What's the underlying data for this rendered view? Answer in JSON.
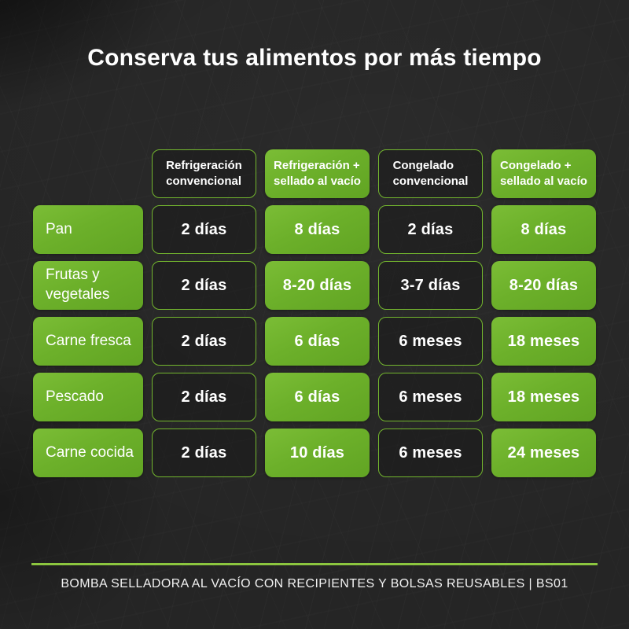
{
  "title": "Conserva tus alimentos por más tiempo",
  "colors": {
    "background": "#252525",
    "accent_green": "#6cb02a",
    "dark_cell_border": "#73b62e",
    "footer_line_green": "#8cc63f",
    "text": "#ffffff"
  },
  "table": {
    "col_headers": [
      {
        "line1": "Refrigeración",
        "line2": "convencional"
      },
      {
        "line1": "Refrigeración +",
        "line2": "sellado al vacío"
      },
      {
        "line1": "Congelado",
        "line2": "convencional"
      },
      {
        "line1": "Congelado +",
        "line2": "sellado al vacío"
      }
    ],
    "rows": [
      {
        "label": "Pan",
        "values": [
          "2 días",
          "8 días",
          "2 días",
          "8 días"
        ]
      },
      {
        "label": "Frutas y vegetales",
        "values": [
          "2 días",
          "8-20 días",
          "3-7 días",
          "8-20 días"
        ]
      },
      {
        "label": "Carne fresca",
        "values": [
          "2 días",
          "6 días",
          "6 meses",
          "18 meses"
        ]
      },
      {
        "label": "Pescado",
        "values": [
          "2 días",
          "6 días",
          "6 meses",
          "18 meses"
        ]
      },
      {
        "label": "Carne cocida",
        "values": [
          "2 días",
          "10 días",
          "6 meses",
          "24 meses"
        ]
      }
    ]
  },
  "footer": {
    "caption": "BOMBA SELLADORA AL VACÍO CON RECIPIENTES Y BOLSAS REUSABLES | BS01"
  },
  "chart_data": {
    "type": "table",
    "title": "Conserva tus alimentos por más tiempo",
    "columns": [
      "Refrigeración convencional",
      "Refrigeración + sellado al vacío",
      "Congelado convencional",
      "Congelado + sellado al vacío"
    ],
    "row_labels": [
      "Pan",
      "Frutas y vegetales",
      "Carne fresca",
      "Pescado",
      "Carne cocida"
    ],
    "cells": [
      [
        "2 días",
        "8 días",
        "2 días",
        "8 días"
      ],
      [
        "2 días",
        "8-20 días",
        "3-7 días",
        "8-20 días"
      ],
      [
        "2 días",
        "6 días",
        "6 meses",
        "18 meses"
      ],
      [
        "2 días",
        "6 días",
        "6 meses",
        "18 meses"
      ],
      [
        "2 días",
        "10 días",
        "6 meses",
        "24 meses"
      ]
    ],
    "caption": "BOMBA SELLADORA AL VACÍO CON RECIPIENTES Y BOLSAS REUSABLES | BS01"
  }
}
